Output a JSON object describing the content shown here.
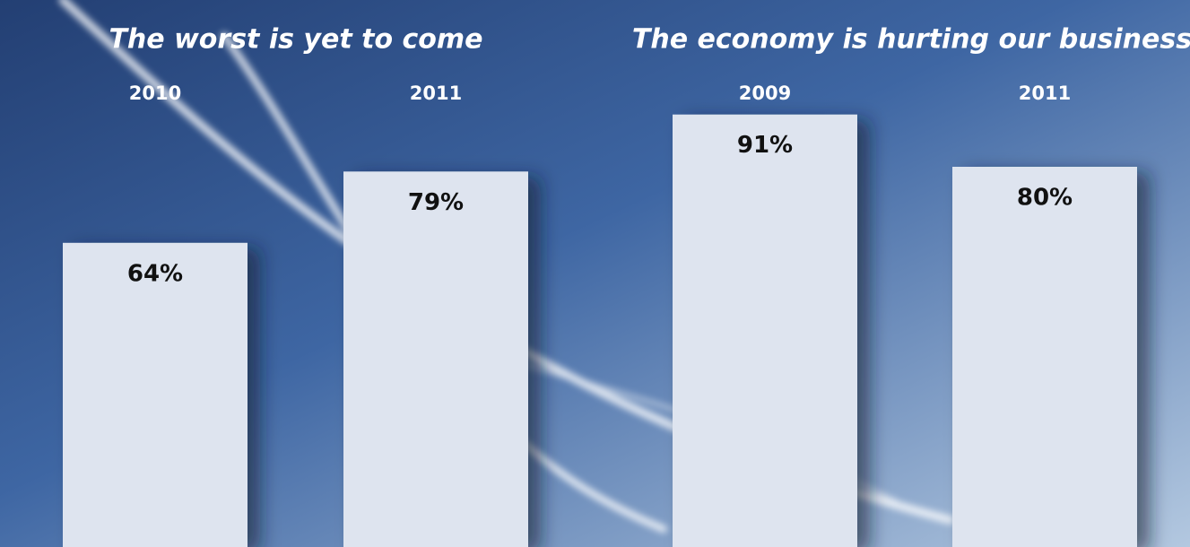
{
  "chart_data": [
    {
      "type": "bar",
      "title": "The worst is yet to come",
      "categories": [
        "2010",
        "2011"
      ],
      "values": [
        64,
        79
      ],
      "value_labels": [
        "64%",
        "79%"
      ],
      "color": "#dee4ef"
    },
    {
      "type": "bar",
      "title": "The economy is hurting our business",
      "categories": [
        "2009",
        "2011"
      ],
      "values": [
        91,
        80
      ],
      "value_labels": [
        "91%",
        "80%"
      ],
      "color": "#dee4ef"
    }
  ]
}
